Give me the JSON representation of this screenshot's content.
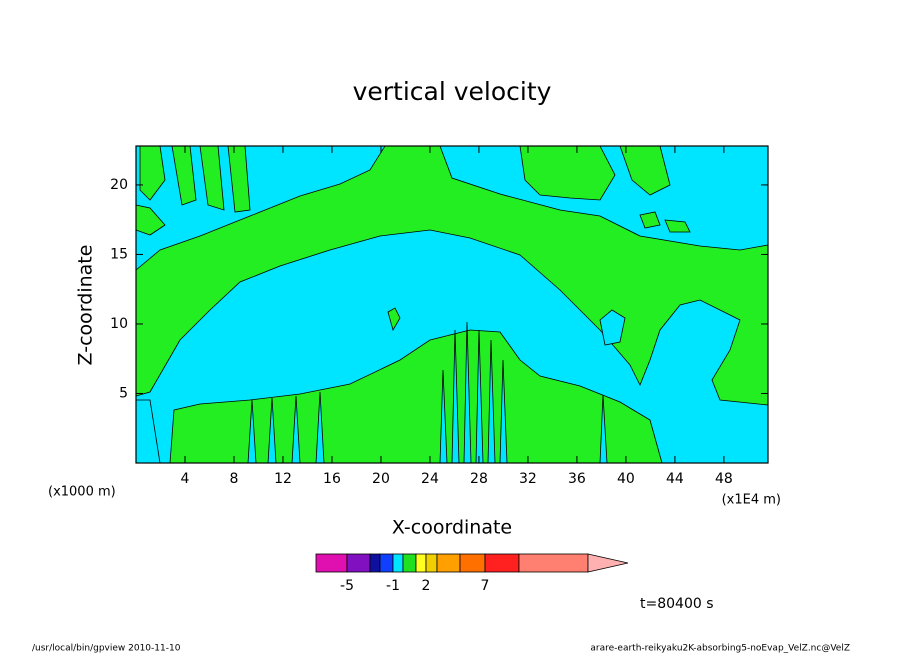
{
  "chart_data": {
    "type": "contour",
    "title": "vertical velocity",
    "xlabel": "X-coordinate",
    "ylabel": "Z-coordinate",
    "x_unit_label": "(x1000 m)",
    "x_unit_label_right": "(x1E4 m)",
    "xlim": [
      0,
      51.6
    ],
    "ylim": [
      0,
      22.8
    ],
    "xticks": [
      4,
      8,
      12,
      16,
      20,
      24,
      28,
      32,
      36,
      40,
      44,
      48
    ],
    "yticks": [
      5,
      10,
      15,
      20
    ],
    "colorbar": {
      "colors": [
        "#e010b0",
        "#8010c0",
        "#1010a0",
        "#1040ff",
        "#00e5ff",
        "#20e020",
        "#ffff20",
        "#f0d000",
        "#ffa000",
        "#ff7000",
        "#ff2020",
        "#ff8070",
        "#ffb0b0"
      ],
      "ticks": [
        -5,
        -1,
        2,
        7
      ]
    },
    "time_label": "t=80400 s",
    "footer_left": "/usr/local/bin/gpview   2010-11-10",
    "footer_right": "arare-earth-reikyaku2K-absorbing5-noEvap_VelZ.nc@VelZ"
  }
}
